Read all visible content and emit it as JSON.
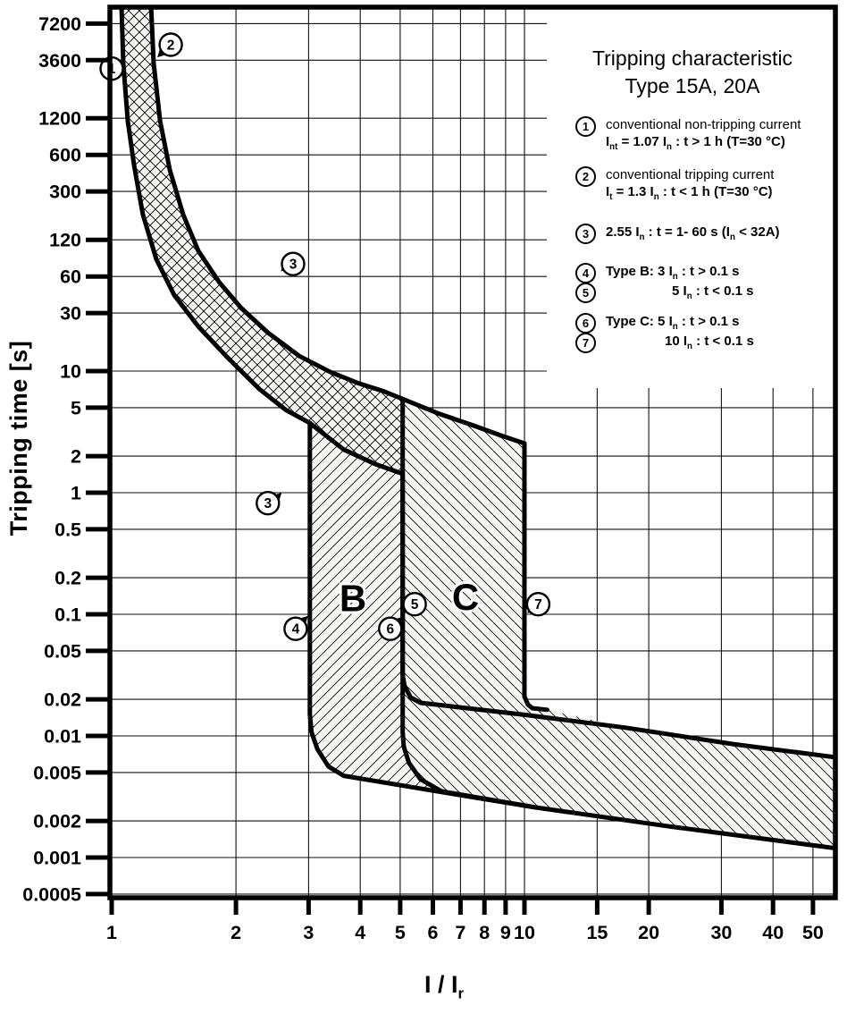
{
  "title": {
    "line1": "Tripping characteristic",
    "line2": "Type 15A, 20A"
  },
  "axes": {
    "x_label": "I / I_{r}",
    "y_label": "Tripping time [s]"
  },
  "legend": {
    "items": [
      {
        "num": "1",
        "lines": [
          "conventional non-tripping current",
          "I_{nt}  = 1.07 I_{n} :  t > 1 h   (T=30 °C)"
        ],
        "kinds": [
          "desc",
          "formula"
        ]
      },
      {
        "num": "2",
        "lines": [
          "conventional tripping current",
          "I_{t}  = 1.3 I_{n} :  t < 1 h   (T=30 °C)"
        ],
        "kinds": [
          "desc",
          "formula"
        ]
      },
      {
        "num": "3",
        "lines": [
          "2.55 I_{n}  : t = 1- 60 s (I_{n} < 32A)"
        ],
        "kinds": [
          "formula"
        ]
      },
      {
        "num": "4",
        "lines": [
          "Type B: 3 I_{n} :  t > 0.1 s"
        ],
        "kinds": [
          "formula"
        ]
      },
      {
        "num": "5",
        "lines": [
          "5 I_{n} :  t < 0.1 s"
        ],
        "kinds": [
          "formula"
        ]
      },
      {
        "num": "6",
        "lines": [
          "Type C: 5 I_{n} : t > 0.1 s"
        ],
        "kinds": [
          "formula"
        ]
      },
      {
        "num": "7",
        "lines": [
          "10 I_{n} : t < 0.1 s"
        ],
        "kinds": [
          "formula"
        ]
      }
    ]
  },
  "chart_data": {
    "type": "line",
    "title": "Tripping characteristic Type 15A, 20A",
    "xlabel": "I / Ir",
    "ylabel": "Tripping time [s]",
    "x_scale": "log",
    "y_scale": "log",
    "xlim": [
      1,
      58
    ],
    "ylim": [
      0.0005,
      9000
    ],
    "grid": true,
    "x_ticks": {
      "values": [
        1,
        2,
        3,
        4,
        5,
        6,
        7,
        8,
        9,
        10,
        15,
        20,
        30,
        40,
        50
      ],
      "labels": [
        "1",
        "2",
        "3",
        "4",
        "5",
        "6",
        "7",
        "8",
        "9",
        "10",
        "15",
        "20",
        "30",
        "40",
        "50"
      ]
    },
    "y_ticks": {
      "values": [
        7200,
        3600,
        1200,
        600,
        300,
        120,
        60,
        30,
        10,
        5,
        2,
        1,
        0.5,
        0.2,
        0.1,
        0.05,
        0.02,
        0.01,
        0.005,
        0.002,
        0.001,
        0.0005
      ],
      "labels": [
        "7200",
        "3600",
        "1200",
        "600",
        "300",
        "120",
        "60",
        "30",
        "10",
        "5",
        "2",
        "1",
        "0.5",
        "0.2",
        "0.1",
        "0.05",
        "0.02",
        "0.01",
        "0.005",
        "0.002",
        "0.001",
        "0.0005"
      ]
    },
    "series": [
      {
        "name": "conventional-non-tripping-limit-1.07In",
        "points": [
          [
            1.056,
            10400
          ],
          [
            1.067,
            3400
          ],
          [
            1.094,
            1140
          ],
          [
            1.133,
            490
          ],
          [
            1.19,
            194
          ],
          [
            1.283,
            83
          ],
          [
            1.418,
            42
          ],
          [
            1.62,
            23.3
          ],
          [
            1.91,
            12.9
          ],
          [
            2.28,
            7.1
          ],
          [
            2.64,
            4.8
          ],
          [
            3.02,
            3.74
          ],
          [
            3.65,
            2.26
          ],
          [
            4.35,
            1.72
          ],
          [
            5.07,
            1.43
          ]
        ]
      },
      {
        "name": "conventional-tripping-limit-1.3In-and-10In-drop",
        "points": [
          [
            1.245,
            10400
          ],
          [
            1.264,
            3400
          ],
          [
            1.31,
            1140
          ],
          [
            1.383,
            450
          ],
          [
            1.49,
            194
          ],
          [
            1.62,
            98
          ],
          [
            1.82,
            54
          ],
          [
            2.06,
            33
          ],
          [
            2.39,
            20.7
          ],
          [
            2.85,
            13.3
          ],
          [
            3.39,
            9.8
          ],
          [
            3.94,
            8.0
          ],
          [
            4.57,
            6.8
          ],
          [
            5.07,
            5.9
          ],
          [
            6.17,
            4.5
          ],
          [
            7.54,
            3.56
          ],
          [
            8.75,
            2.96
          ],
          [
            10.0,
            2.54
          ],
          [
            10.0,
            0.021
          ],
          [
            10.2,
            0.0181
          ],
          [
            10.45,
            0.0169
          ],
          [
            11.35,
            0.0164
          ]
        ]
      },
      {
        "name": "type-B-lower-boundary-3In",
        "points": [
          [
            3.02,
            3.74
          ],
          [
            3.02,
            0.015
          ],
          [
            3.05,
            0.0107
          ],
          [
            3.15,
            0.0078
          ],
          [
            3.35,
            0.0056
          ],
          [
            3.65,
            0.0047
          ],
          [
            6.47,
            0.0034
          ],
          [
            10.65,
            0.00258
          ],
          [
            22.5,
            0.0018
          ],
          [
            58,
            0.00118
          ]
        ]
      },
      {
        "name": "type-B-upper-boundary-5In",
        "points": [
          [
            5.07,
            1.43
          ],
          [
            5.07,
            0.0316
          ],
          [
            5.12,
            0.0259
          ],
          [
            5.3,
            0.0207
          ],
          [
            5.6,
            0.0187
          ],
          [
            10,
            0.0149
          ],
          [
            17.5,
            0.0117
          ],
          [
            32,
            0.00857
          ],
          [
            58,
            0.0066
          ]
        ]
      },
      {
        "name": "type-C-lower-boundary-5In",
        "points": [
          [
            5.07,
            5.9
          ],
          [
            5.07,
            0.0107
          ],
          [
            5.1,
            0.0082
          ],
          [
            5.25,
            0.006
          ],
          [
            5.6,
            0.0044
          ],
          [
            6.3,
            0.0035
          ],
          [
            10.65,
            0.00258
          ]
        ]
      }
    ],
    "regions": [
      {
        "name": "thermal-band",
        "hatch": "cross",
        "points": [
          [
            1.245,
            10400
          ],
          [
            1.264,
            3400
          ],
          [
            1.31,
            1140
          ],
          [
            1.383,
            450
          ],
          [
            1.49,
            194
          ],
          [
            1.62,
            98
          ],
          [
            1.82,
            54
          ],
          [
            2.06,
            33
          ],
          [
            2.39,
            20.7
          ],
          [
            2.85,
            13.3
          ],
          [
            3.39,
            9.8
          ],
          [
            3.94,
            8.0
          ],
          [
            4.57,
            6.8
          ],
          [
            5.07,
            5.9
          ],
          [
            5.07,
            1.43
          ],
          [
            4.35,
            1.72
          ],
          [
            3.65,
            2.26
          ],
          [
            3.02,
            3.74
          ],
          [
            2.64,
            4.8
          ],
          [
            2.28,
            7.1
          ],
          [
            1.91,
            12.9
          ],
          [
            1.62,
            23.3
          ],
          [
            1.418,
            42
          ],
          [
            1.283,
            83
          ],
          [
            1.19,
            194
          ],
          [
            1.133,
            490
          ],
          [
            1.094,
            1140
          ],
          [
            1.067,
            3400
          ],
          [
            1.056,
            10400
          ]
        ]
      },
      {
        "name": "type-B-band",
        "hatch": "fwd",
        "points": [
          [
            3.02,
            3.74
          ],
          [
            3.65,
            2.26
          ],
          [
            4.35,
            1.72
          ],
          [
            5.07,
            1.43
          ],
          [
            5.07,
            0.0316
          ],
          [
            5.12,
            0.0259
          ],
          [
            5.3,
            0.0207
          ],
          [
            5.6,
            0.0187
          ],
          [
            10,
            0.0149
          ],
          [
            17.5,
            0.0117
          ],
          [
            32,
            0.00857
          ],
          [
            58,
            0.0066
          ],
          [
            58,
            0.00118
          ],
          [
            22.5,
            0.0018
          ],
          [
            10.65,
            0.00258
          ],
          [
            6.47,
            0.0034
          ],
          [
            3.65,
            0.0047
          ],
          [
            3.35,
            0.0056
          ],
          [
            3.15,
            0.0078
          ],
          [
            3.05,
            0.0107
          ],
          [
            3.02,
            0.015
          ]
        ]
      },
      {
        "name": "type-C-band",
        "hatch": "back",
        "points": [
          [
            5.07,
            5.9
          ],
          [
            6.17,
            4.5
          ],
          [
            7.54,
            3.56
          ],
          [
            8.75,
            2.96
          ],
          [
            10,
            2.54
          ],
          [
            10,
            0.021
          ],
          [
            10.2,
            0.0181
          ],
          [
            10.45,
            0.0169
          ],
          [
            11.35,
            0.0164
          ],
          [
            17.5,
            0.0117
          ],
          [
            32,
            0.00857
          ],
          [
            58,
            0.0066
          ],
          [
            58,
            0.00118
          ],
          [
            22.5,
            0.0018
          ],
          [
            10.65,
            0.00258
          ],
          [
            6.3,
            0.0035
          ],
          [
            5.6,
            0.0044
          ],
          [
            5.25,
            0.006
          ],
          [
            5.1,
            0.0082
          ],
          [
            5.07,
            0.0107
          ]
        ]
      }
    ],
    "markers": [
      {
        "n": "1",
        "at": [
          1.0,
          3070
        ],
        "tip": [
          1.065,
          3680
        ],
        "dir": "ur"
      },
      {
        "n": "2",
        "at": [
          1.39,
          4830
        ],
        "tip": [
          1.29,
          3800
        ],
        "dir": "dl"
      },
      {
        "n": "3",
        "at": [
          2.75,
          76
        ],
        "tip": [
          2.57,
          66
        ],
        "dir": "dl"
      },
      {
        "n": "3",
        "at": [
          2.39,
          0.82
        ],
        "tip": [
          2.58,
          1.0
        ],
        "dir": "ur"
      },
      {
        "n": "4",
        "at": [
          2.79,
          0.076
        ],
        "tip": [
          2.99,
          0.097
        ],
        "dir": "ur"
      },
      {
        "n": "5",
        "at": [
          5.42,
          0.121
        ],
        "tip": [
          5.13,
          0.102
        ],
        "dir": "dl"
      },
      {
        "n": "6",
        "at": [
          4.73,
          0.076
        ],
        "tip": [
          5.05,
          0.095
        ],
        "dir": "ur"
      },
      {
        "n": "7",
        "at": [
          10.8,
          0.121
        ],
        "tip": [
          10.16,
          0.102
        ],
        "dir": "dl"
      }
    ],
    "zone_labels": [
      {
        "text": "B",
        "at": [
          3.84,
          0.134
        ]
      },
      {
        "text": "C",
        "at": [
          7.2,
          0.138
        ]
      }
    ],
    "colors": {
      "ink": "#000000",
      "background": "#ffffff",
      "hatch_bg": "#f4f4f2"
    }
  }
}
